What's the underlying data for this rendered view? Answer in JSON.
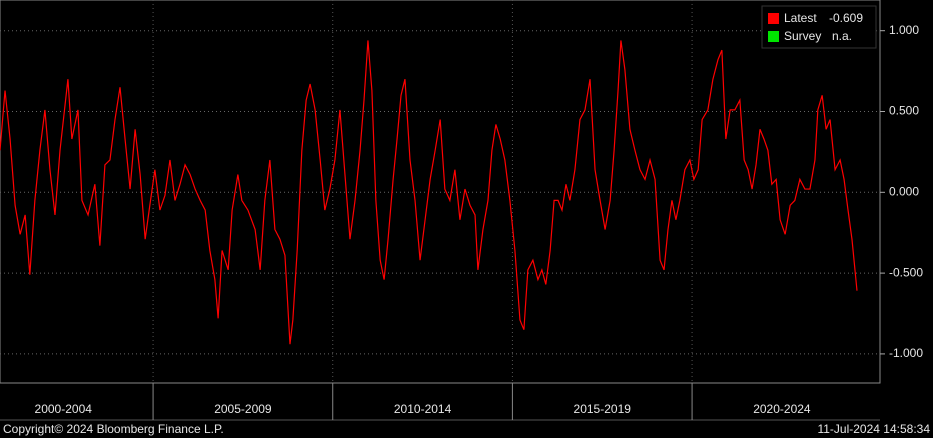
{
  "chart_data": {
    "type": "line",
    "x": [
      2000.74,
      2000.88,
      2001.02,
      2001.16,
      2001.3,
      2001.44,
      2001.57,
      2001.71,
      2001.85,
      2001.99,
      2002.13,
      2002.27,
      2002.41,
      2002.55,
      2002.63,
      2002.74,
      2002.91,
      2003.02,
      2003.19,
      2003.38,
      2003.52,
      2003.66,
      2003.8,
      2003.94,
      2004.08,
      2004.22,
      2004.36,
      2004.5,
      2004.64,
      2004.78,
      2004.91,
      2005.05,
      2005.19,
      2005.33,
      2005.47,
      2005.61,
      2005.75,
      2005.89,
      2006.03,
      2006.17,
      2006.31,
      2006.45,
      2006.58,
      2006.72,
      2006.81,
      2006.92,
      2007.09,
      2007.2,
      2007.36,
      2007.47,
      2007.64,
      2007.84,
      2007.98,
      2008.11,
      2008.25,
      2008.39,
      2008.53,
      2008.67,
      2008.81,
      2008.89,
      2009.01,
      2009.14,
      2009.26,
      2009.37,
      2009.51,
      2009.65,
      2009.78,
      2009.92,
      2010.06,
      2010.2,
      2010.34,
      2010.48,
      2010.62,
      2010.76,
      2010.87,
      2010.98,
      2011.09,
      2011.2,
      2011.32,
      2011.43,
      2011.54,
      2011.68,
      2011.79,
      2011.9,
      2012.01,
      2012.15,
      2012.29,
      2012.43,
      2012.57,
      2012.71,
      2012.85,
      2012.99,
      2013.12,
      2013.26,
      2013.4,
      2013.54,
      2013.68,
      2013.82,
      2013.96,
      2014.04,
      2014.18,
      2014.32,
      2014.43,
      2014.54,
      2014.66,
      2014.79,
      2014.93,
      2015.07,
      2015.21,
      2015.32,
      2015.43,
      2015.57,
      2015.71,
      2015.82,
      2015.93,
      2016.05,
      2016.16,
      2016.27,
      2016.38,
      2016.49,
      2016.6,
      2016.74,
      2016.88,
      2017.02,
      2017.16,
      2017.3,
      2017.44,
      2017.58,
      2017.72,
      2017.83,
      2017.94,
      2018.02,
      2018.13,
      2018.27,
      2018.41,
      2018.55,
      2018.69,
      2018.83,
      2018.97,
      2019.11,
      2019.22,
      2019.33,
      2019.44,
      2019.55,
      2019.66,
      2019.8,
      2019.94,
      2020.05,
      2020.17,
      2020.28,
      2020.44,
      2020.58,
      2020.72,
      2020.83,
      2020.94,
      2021.06,
      2021.19,
      2021.33,
      2021.45,
      2021.56,
      2021.67,
      2021.78,
      2021.89,
      2022.0,
      2022.11,
      2022.22,
      2022.34,
      2022.45,
      2022.59,
      2022.73,
      2022.86,
      2023.0,
      2023.14,
      2023.28,
      2023.42,
      2023.5,
      2023.62,
      2023.73,
      2023.84,
      2023.98,
      2024.12,
      2024.23,
      2024.34,
      2024.45,
      2024.59
    ],
    "series": [
      {
        "name": "Latest",
        "color": "#ff0000",
        "values": [
          0.26,
          0.63,
          0.33,
          -0.08,
          -0.26,
          -0.14,
          -0.51,
          -0.05,
          0.26,
          0.51,
          0.14,
          -0.14,
          0.26,
          0.54,
          0.7,
          0.33,
          0.51,
          -0.05,
          -0.14,
          0.05,
          -0.33,
          0.17,
          0.2,
          0.45,
          0.65,
          0.33,
          0.02,
          0.39,
          0.11,
          -0.29,
          -0.08,
          0.14,
          -0.11,
          -0.02,
          0.2,
          -0.05,
          0.05,
          0.17,
          0.11,
          0.02,
          -0.05,
          -0.11,
          -0.36,
          -0.54,
          -0.78,
          -0.36,
          -0.48,
          -0.11,
          0.11,
          -0.05,
          -0.11,
          -0.23,
          -0.48,
          -0.05,
          0.2,
          -0.23,
          -0.29,
          -0.39,
          -0.94,
          -0.79,
          -0.36,
          0.26,
          0.57,
          0.67,
          0.51,
          0.2,
          -0.11,
          0.02,
          0.2,
          0.51,
          0.11,
          -0.29,
          -0.05,
          0.26,
          0.57,
          0.94,
          0.63,
          -0.05,
          -0.42,
          -0.54,
          -0.29,
          0.08,
          0.33,
          0.6,
          0.7,
          0.2,
          -0.05,
          -0.42,
          -0.17,
          0.08,
          0.26,
          0.45,
          0.02,
          -0.05,
          0.14,
          -0.17,
          0.02,
          -0.08,
          -0.14,
          -0.48,
          -0.23,
          -0.05,
          0.26,
          0.42,
          0.33,
          0.2,
          -0.05,
          -0.36,
          -0.79,
          -0.85,
          -0.48,
          -0.42,
          -0.54,
          -0.48,
          -0.57,
          -0.36,
          -0.05,
          -0.05,
          -0.11,
          0.05,
          -0.05,
          0.14,
          0.45,
          0.51,
          0.7,
          0.14,
          -0.05,
          -0.23,
          -0.05,
          0.26,
          0.63,
          0.94,
          0.76,
          0.39,
          0.26,
          0.14,
          0.08,
          0.2,
          0.08,
          -0.42,
          -0.48,
          -0.23,
          -0.05,
          -0.17,
          -0.05,
          0.14,
          0.2,
          0.08,
          0.14,
          0.45,
          0.51,
          0.7,
          0.82,
          0.88,
          0.33,
          0.51,
          0.51,
          0.57,
          0.2,
          0.14,
          0.02,
          0.17,
          0.39,
          0.33,
          0.26,
          0.05,
          0.08,
          -0.17,
          -0.26,
          -0.08,
          -0.05,
          0.08,
          0.02,
          0.02,
          0.2,
          0.51,
          0.6,
          0.39,
          0.45,
          0.14,
          0.2,
          0.08,
          -0.11,
          -0.29,
          -0.609
        ]
      }
    ],
    "legend_extra": {
      "name": "Survey",
      "color": "#00e600",
      "label": "n.a."
    },
    "xlim": [
      2000.74,
      2025.23
    ],
    "xticks": [
      {
        "value": 2002.5,
        "label": "2000-2004"
      },
      {
        "value": 2007.5,
        "label": "2005-2009"
      },
      {
        "value": 2012.5,
        "label": "2010-2014"
      },
      {
        "value": 2017.5,
        "label": "2015-2019"
      },
      {
        "value": 2022.5,
        "label": "2020-2024"
      }
    ],
    "xseparators": [
      2005,
      2010,
      2015,
      2020
    ],
    "ylim": [
      -1.18,
      1.19
    ],
    "yticks": [
      {
        "value": -1,
        "label": "-1.000"
      },
      {
        "value": -0.5,
        "label": "-0.500"
      },
      {
        "value": 0,
        "label": "0.000"
      },
      {
        "value": 0.5,
        "label": "0.500"
      },
      {
        "value": 1,
        "label": "1.000"
      }
    ],
    "grid": true,
    "legend_position": "top-right",
    "footer_left": "Copyright© 2024 Bloomberg Finance L.P.",
    "footer_right": "11-Jul-2024 14:58:34"
  }
}
